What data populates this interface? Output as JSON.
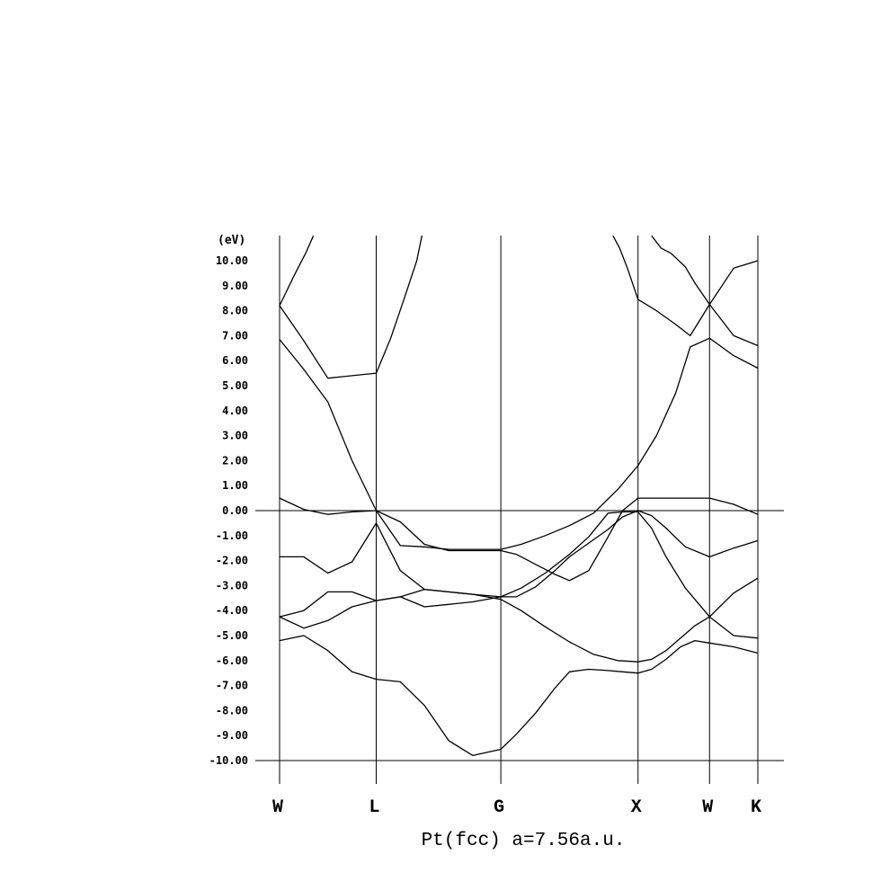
{
  "chart_data": {
    "type": "line",
    "title": "Pt(fcc) a=7.56a.u.",
    "ylabel": "(eV)",
    "ylim": [
      -10,
      10
    ],
    "yticks": [
      "10.00",
      "9.00",
      "8.00",
      "7.00",
      "6.00",
      "5.00",
      "4.00",
      "3.00",
      "2.00",
      "1.00",
      "0.00",
      "-1.00",
      "-2.00",
      "-3.00",
      "-4.00",
      "-5.00",
      "-6.00",
      "-7.00",
      "-8.00",
      "-9.00",
      "-10.00"
    ],
    "xlim": [
      0,
      4.95
    ],
    "kpoints": [
      {
        "label": "W",
        "x": 0
      },
      {
        "label": "L",
        "x": 1.0
      },
      {
        "label": "G",
        "x": 2.29
      },
      {
        "label": "X",
        "x": 3.71
      },
      {
        "label": "W",
        "x": 4.45
      },
      {
        "label": "K",
        "x": 4.95
      }
    ],
    "fermi_level": 0,
    "series": [
      {
        "x": [
          0,
          0.25,
          0.5,
          0.75,
          1.0,
          1.25,
          1.5,
          1.75,
          2.0,
          2.29,
          2.45,
          2.65,
          2.85,
          3.0,
          3.2,
          3.4,
          3.55,
          3.71,
          3.85,
          4.0,
          4.15,
          4.3,
          4.45,
          4.7,
          4.95
        ],
        "y": [
          -5.2,
          -5.0,
          -5.6,
          -6.45,
          -6.75,
          -6.85,
          -7.8,
          -9.2,
          -9.8,
          -9.55,
          -8.95,
          -8.1,
          -7.1,
          -6.45,
          -6.35,
          -6.4,
          -6.45,
          -6.5,
          -6.35,
          -5.95,
          -5.45,
          -5.2,
          -5.3,
          -5.45,
          -5.7
        ]
      },
      {
        "x": [
          0,
          0.25,
          0.5,
          0.75,
          1.0,
          1.25,
          1.5,
          1.75,
          2.0,
          2.29,
          2.5,
          2.75,
          3.0,
          3.25,
          3.5,
          3.71,
          3.85,
          4.0,
          4.15,
          4.3,
          4.45,
          4.7,
          4.95
        ],
        "y": [
          -4.25,
          -4.7,
          -4.4,
          -3.85,
          -3.6,
          -3.45,
          -3.15,
          -3.25,
          -3.35,
          -3.55,
          -4.0,
          -4.65,
          -5.25,
          -5.75,
          -6.0,
          -6.05,
          -5.95,
          -5.6,
          -5.1,
          -4.6,
          -4.25,
          -3.3,
          -2.7
        ]
      },
      {
        "x": [
          0,
          0.25,
          0.5,
          0.75,
          1.0,
          1.25,
          1.5,
          1.75,
          2.0,
          2.29,
          2.5,
          2.75,
          3.0,
          3.2,
          3.4,
          3.55,
          3.71,
          3.85,
          4.0,
          4.2,
          4.45,
          4.7,
          4.95
        ],
        "y": [
          -4.25,
          -4.0,
          -3.25,
          -3.25,
          -3.6,
          -3.45,
          -3.85,
          -3.75,
          -3.65,
          -3.45,
          -3.1,
          -2.5,
          -1.75,
          -1.05,
          -0.1,
          -0.05,
          -0.05,
          -0.7,
          -1.85,
          -3.1,
          -4.25,
          -5.0,
          -5.1
        ]
      },
      {
        "x": [
          0,
          0.25,
          0.5,
          0.75,
          1.0,
          1.25,
          1.5,
          1.75,
          2.0,
          2.29,
          2.45,
          2.65,
          2.85,
          3.0,
          3.2,
          3.4,
          3.55,
          3.71,
          3.85,
          4.0,
          4.2,
          4.45,
          4.7,
          4.95
        ],
        "y": [
          -1.85,
          -1.85,
          -2.5,
          -2.05,
          -0.5,
          -2.4,
          -3.15,
          -3.25,
          -3.35,
          -3.45,
          -3.45,
          -3.05,
          -2.4,
          -1.85,
          -1.3,
          -0.75,
          -0.25,
          0.0,
          -0.2,
          -0.7,
          -1.45,
          -1.85,
          -1.5,
          -1.2
        ]
      },
      {
        "x": [
          0,
          0.25,
          0.5,
          0.75,
          1.0,
          1.25,
          1.5,
          1.75,
          2.0,
          2.29,
          2.45,
          2.65,
          2.85,
          3.0,
          3.2,
          3.4,
          3.55,
          3.71,
          3.85,
          4.0,
          4.2,
          4.45,
          4.7,
          4.95
        ],
        "y": [
          0.5,
          0.05,
          -0.15,
          -0.05,
          0.0,
          -0.45,
          -1.35,
          -1.6,
          -1.6,
          -1.6,
          -1.75,
          -2.15,
          -2.55,
          -2.8,
          -2.4,
          -1.05,
          0.0,
          0.5,
          0.5,
          0.5,
          0.5,
          0.5,
          0.25,
          -0.15
        ]
      },
      {
        "x": [
          0,
          0.25,
          0.5,
          0.75,
          1.0,
          1.25,
          1.5,
          1.75,
          2.0,
          2.29,
          2.5,
          2.75,
          3.0,
          3.25,
          3.5,
          3.71,
          3.9,
          4.1,
          4.25,
          4.45,
          4.7,
          4.95
        ],
        "y": [
          6.85,
          5.65,
          4.35,
          2.0,
          0.0,
          -1.4,
          -1.45,
          -1.55,
          -1.55,
          -1.55,
          -1.35,
          -1.0,
          -0.6,
          -0.1,
          0.85,
          1.8,
          3.0,
          4.7,
          6.55,
          6.9,
          6.2,
          5.7
        ]
      },
      {
        "x": [
          0,
          0.25,
          0.5,
          0.75,
          1.0,
          1.15,
          1.3,
          1.42,
          1.5
        ],
        "y": [
          8.2,
          6.8,
          5.3,
          5.4,
          5.5,
          6.9,
          8.6,
          10.0,
          11.5
        ]
      },
      {
        "x": [
          0,
          0.15,
          0.27,
          0.35
        ],
        "y": [
          8.2,
          9.4,
          10.3,
          11.0
        ]
      },
      {
        "x": [
          3.45,
          3.52,
          3.6,
          3.71,
          3.9,
          4.1,
          4.25,
          4.45,
          4.7,
          4.95
        ],
        "y": [
          11.0,
          10.5,
          9.7,
          8.45,
          8.0,
          7.45,
          7.0,
          8.25,
          7.0,
          6.6
        ]
      },
      {
        "x": [
          3.85,
          3.95,
          4.05,
          4.2,
          4.3,
          4.45,
          4.7,
          4.95
        ],
        "y": [
          11.0,
          10.5,
          10.3,
          9.75,
          9.1,
          8.25,
          9.7,
          10.0
        ]
      }
    ]
  }
}
